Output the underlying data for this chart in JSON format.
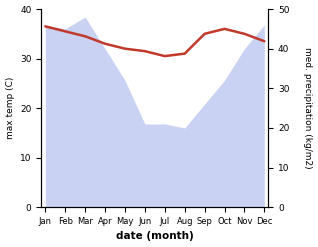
{
  "months": [
    "Jan",
    "Feb",
    "Mar",
    "Apr",
    "May",
    "Jun",
    "Jul",
    "Aug",
    "Sep",
    "Oct",
    "Nov",
    "Dec"
  ],
  "temp_max": [
    36.5,
    35.5,
    34.5,
    33.0,
    32.0,
    31.5,
    30.5,
    31.0,
    35.0,
    36.0,
    35.0,
    33.5
  ],
  "precipitation": [
    46,
    45,
    48,
    40,
    32,
    21,
    21,
    20,
    26,
    32,
    40,
    46
  ],
  "temp_color": "#c0392b",
  "precip_fill_color": "#b8c4ee",
  "precip_fill_alpha": 0.75,
  "temp_linewidth": 1.8,
  "ylim_temp": [
    0,
    40
  ],
  "ylim_precip": [
    0,
    50
  ],
  "yticks_temp": [
    0,
    10,
    20,
    30,
    40
  ],
  "yticks_precip": [
    0,
    10,
    20,
    30,
    40,
    50
  ],
  "ylabel_left": "max temp (C)",
  "ylabel_right": "med. precipitation (kg/m2)",
  "xlabel": "date (month)",
  "background_color": "#ffffff"
}
